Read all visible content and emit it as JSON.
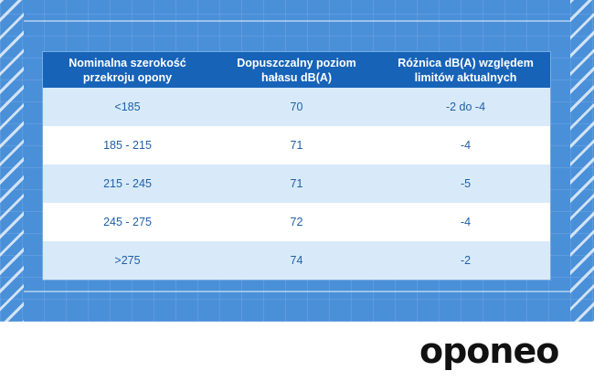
{
  "table": {
    "headers": [
      "Nominalna szerokość\nprzekroju opony",
      "Dopuszczalny poziom\nhałasu dB(A)",
      "Różnica dB(A) względem\nlimitów aktualnych"
    ],
    "rows": [
      [
        "<185",
        "70",
        "-2 do -4"
      ],
      [
        "185 - 215",
        "71",
        "-4"
      ],
      [
        "215 - 245",
        "71",
        "-5"
      ],
      [
        "245 - 275",
        "72",
        "-4"
      ],
      [
        ">275",
        "74",
        "-2"
      ]
    ]
  },
  "brand": {
    "logo_text": "oponeo"
  },
  "colors": {
    "banner": "#4a90d9",
    "header": "#1763b8",
    "row_odd": "#d8eaf9",
    "row_even": "#ffffff",
    "cell_text": "#1f5fa8"
  }
}
